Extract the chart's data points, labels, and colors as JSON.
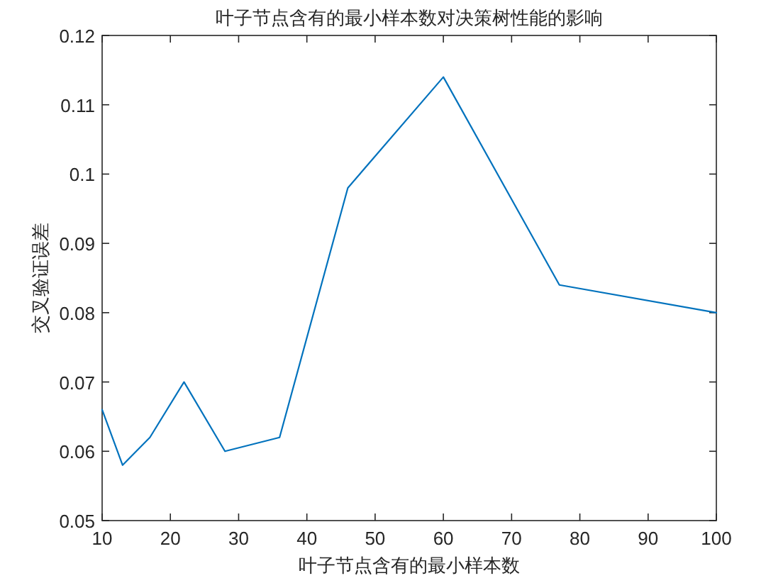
{
  "chart_data": {
    "type": "line",
    "title": "叶子节点含有的最小样本数对决策树性能的影响",
    "xlabel": "叶子节点含有的最小样本数",
    "ylabel": "交叉验证误差",
    "x": [
      10,
      13,
      17,
      22,
      28,
      36,
      46,
      60,
      77,
      100
    ],
    "series": [
      {
        "color": "#0072bd",
        "values": [
          0.066,
          0.058,
          0.062,
          0.07,
          0.06,
          0.062,
          0.098,
          0.114,
          0.084,
          0.08
        ]
      }
    ],
    "xlim": [
      10,
      100
    ],
    "xticks": [
      10,
      20,
      30,
      40,
      50,
      60,
      70,
      80,
      90,
      100
    ],
    "ylim": [
      0.05,
      0.12
    ],
    "yticks": [
      0.05,
      0.06,
      0.07,
      0.08,
      0.09,
      0.1,
      0.11,
      0.12
    ],
    "grid": false,
    "marker": "none",
    "line_style": "solid"
  }
}
